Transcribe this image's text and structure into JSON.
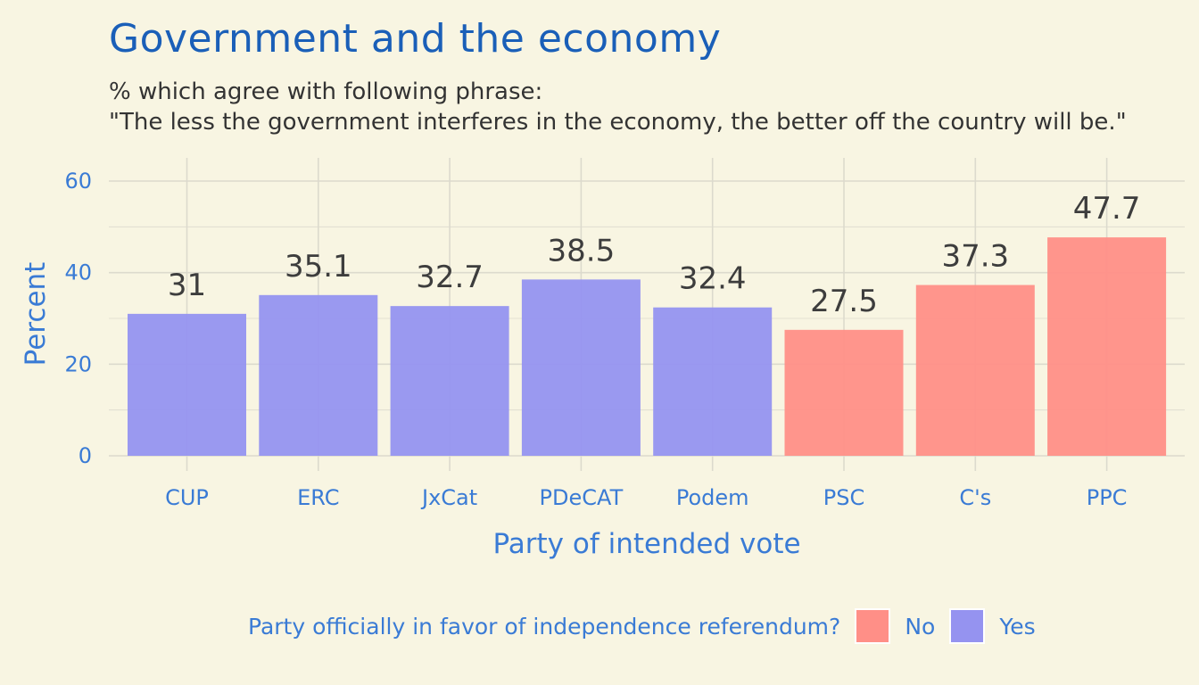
{
  "chart_data": {
    "type": "bar",
    "title": "Government and the economy",
    "subtitle_lines": [
      "% which agree with following phrase:",
      "\"The less the government interferes in the economy, the better off the country will be.\""
    ],
    "xlabel": "Party of intended vote",
    "ylabel": "Percent",
    "categories": [
      "CUP",
      "ERC",
      "JxCat",
      "PDeCAT",
      "Podem",
      "PSC",
      "C's",
      "PPC"
    ],
    "values": [
      31,
      35.1,
      32.7,
      38.5,
      32.4,
      27.5,
      37.3,
      47.7
    ],
    "value_labels": [
      "31",
      "35.1",
      "32.7",
      "38.5",
      "32.4",
      "27.5",
      "37.3",
      "47.7"
    ],
    "group": [
      "Yes",
      "Yes",
      "Yes",
      "Yes",
      "Yes",
      "No",
      "No",
      "No"
    ],
    "ylim": [
      0,
      60
    ],
    "yticks": [
      0,
      20,
      40,
      60
    ],
    "grid": true,
    "legend": {
      "title": "Party officially in favor of independence referendum?",
      "placement": "bottom",
      "entries": [
        {
          "label": "No",
          "color": "#ff8f87"
        },
        {
          "label": "Yes",
          "color": "#9593f0"
        }
      ]
    },
    "colors": {
      "Yes": "#9593f0",
      "No": "#ff8f87",
      "background": "#f8f5e2",
      "title": "#1a5fb8",
      "axis_text": "#3a7bd5",
      "value_label": "#3d3d3d",
      "grid": "#dcdacd"
    }
  }
}
